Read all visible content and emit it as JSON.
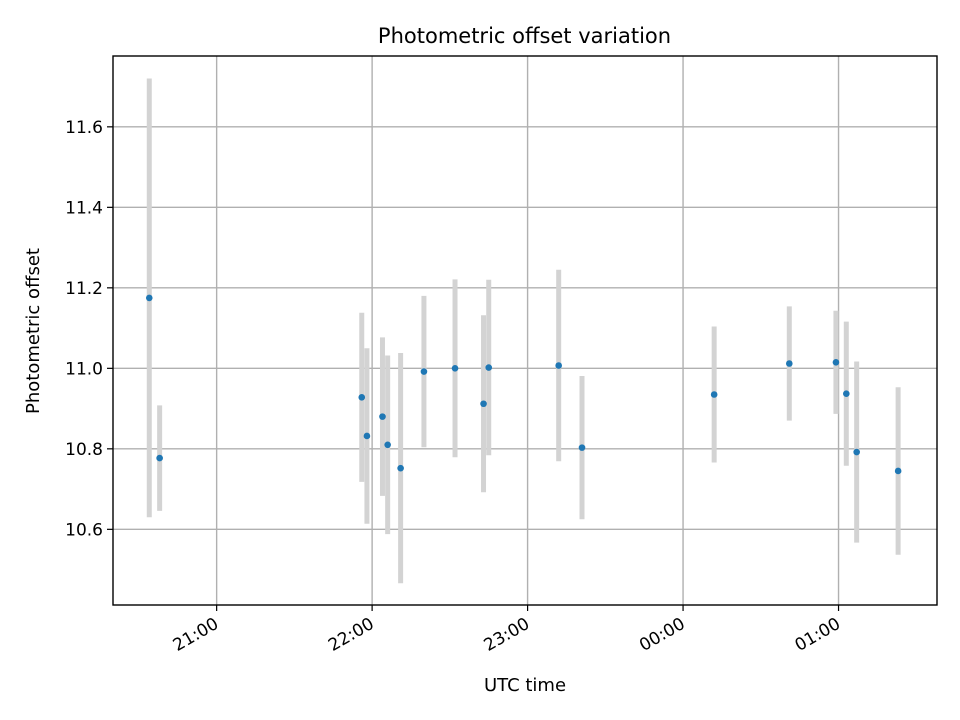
{
  "chart_data": {
    "type": "scatter",
    "title": "Photometric offset variation",
    "xlabel": "UTC time",
    "ylabel": "Photometric offset",
    "x_unit": "UTC datetime (night of 2022-01-01 / 2022-01-02)",
    "xlim": [
      "2022-01-01T20:20:00",
      "2022-01-02T01:38:00"
    ],
    "ylim": [
      10.412,
      11.776
    ],
    "x_ticks": [
      {
        "t": "2022-01-01T21:00",
        "label": "21:00"
      },
      {
        "t": "2022-01-01T22:00",
        "label": "22:00"
      },
      {
        "t": "2022-01-01T23:00",
        "label": "23:00"
      },
      {
        "t": "2022-01-02T00:00",
        "label": "00:00"
      },
      {
        "t": "2022-01-02T01:00",
        "label": "01:00"
      }
    ],
    "y_ticks": [
      10.6,
      10.8,
      11.0,
      11.2,
      11.4,
      11.6
    ],
    "grid": true,
    "errorbar_color": "#d3d3d3",
    "marker_color": "#1f77b4",
    "series": [
      {
        "points": [
          {
            "x": "2022-01-01T20:34",
            "y": 11.175,
            "err": 0.545
          },
          {
            "x": "2022-01-01T20:38",
            "y": 10.777,
            "err": 0.131
          },
          {
            "x": "2022-01-01T21:56",
            "y": 10.928,
            "err": 0.21
          },
          {
            "x": "2022-01-01T21:58",
            "y": 10.832,
            "err": 0.218
          },
          {
            "x": "2022-01-01T22:04",
            "y": 10.88,
            "err": 0.197
          },
          {
            "x": "2022-01-01T22:06",
            "y": 10.81,
            "err": 0.222
          },
          {
            "x": "2022-01-01T22:11",
            "y": 10.752,
            "err": 0.286
          },
          {
            "x": "2022-01-01T22:20",
            "y": 10.992,
            "err": 0.188
          },
          {
            "x": "2022-01-01T22:32",
            "y": 11.0,
            "err": 0.221
          },
          {
            "x": "2022-01-01T22:43",
            "y": 10.912,
            "err": 0.22
          },
          {
            "x": "2022-01-01T22:45",
            "y": 11.002,
            "err": 0.218
          },
          {
            "x": "2022-01-01T23:12",
            "y": 11.007,
            "err": 0.238
          },
          {
            "x": "2022-01-01T23:21",
            "y": 10.803,
            "err": 0.178
          },
          {
            "x": "2022-01-02T00:12",
            "y": 10.935,
            "err": 0.169
          },
          {
            "x": "2022-01-02T00:41",
            "y": 11.012,
            "err": 0.142
          },
          {
            "x": "2022-01-02T00:59",
            "y": 11.015,
            "err": 0.128
          },
          {
            "x": "2022-01-02T01:03",
            "y": 10.937,
            "err": 0.179
          },
          {
            "x": "2022-01-02T01:07",
            "y": 10.792,
            "err": 0.225
          },
          {
            "x": "2022-01-02T01:23",
            "y": 10.745,
            "err": 0.208
          }
        ]
      }
    ]
  }
}
